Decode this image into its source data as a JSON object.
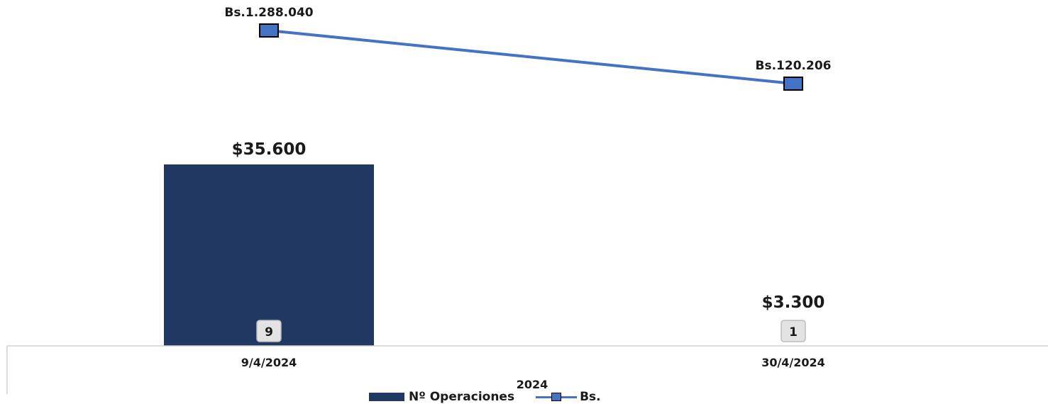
{
  "chart_data": {
    "type": "bar",
    "categories": [
      "9/4/2024",
      "30/4/2024"
    ],
    "xlabel": "2024",
    "series": [
      {
        "name": "Nº Operaciones",
        "kind": "bar",
        "values": [
          9,
          1
        ],
        "data_labels": [
          "9",
          "1"
        ],
        "top_labels": [
          "$35.600",
          "$3.300"
        ],
        "top_label_values": [
          35600,
          3300
        ],
        "color": "#213863"
      },
      {
        "name": "Bs.",
        "kind": "line",
        "values": [
          1288040,
          120206
        ],
        "data_labels": [
          "Bs.1.288.040",
          "Bs.120.206"
        ],
        "color": "#4472C4",
        "marker": "square"
      }
    ],
    "legend_position": "bottom",
    "grid": false
  }
}
